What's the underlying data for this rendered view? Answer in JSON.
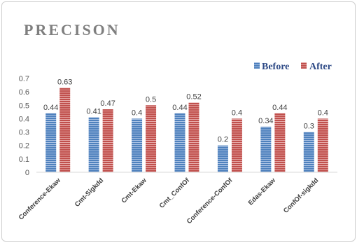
{
  "chart_data": {
    "type": "bar",
    "title": "PRECISON",
    "categories": [
      "Conference-Ekaw",
      "Cmt-Sigkdd",
      "Cmt-Ekaw",
      "Cmt_ConfOf",
      "Conference-ConfOf",
      "Edas-Ekaw",
      "ConfOf-sigkdd"
    ],
    "series": [
      {
        "name": "Before",
        "values": [
          0.44,
          0.41,
          0.4,
          0.44,
          0.2,
          0.34,
          0.3
        ],
        "color": "#4f81bd"
      },
      {
        "name": "After",
        "values": [
          0.63,
          0.47,
          0.5,
          0.52,
          0.4,
          0.44,
          0.4
        ],
        "color": "#c0504d"
      }
    ],
    "ylim": [
      0,
      0.7
    ],
    "yticks": [
      "0",
      "0.1",
      "0.2",
      "0.3",
      "0.4",
      "0.5",
      "0.6",
      "0.7"
    ],
    "grid": false,
    "legend": "top-right",
    "data_labels": true
  }
}
